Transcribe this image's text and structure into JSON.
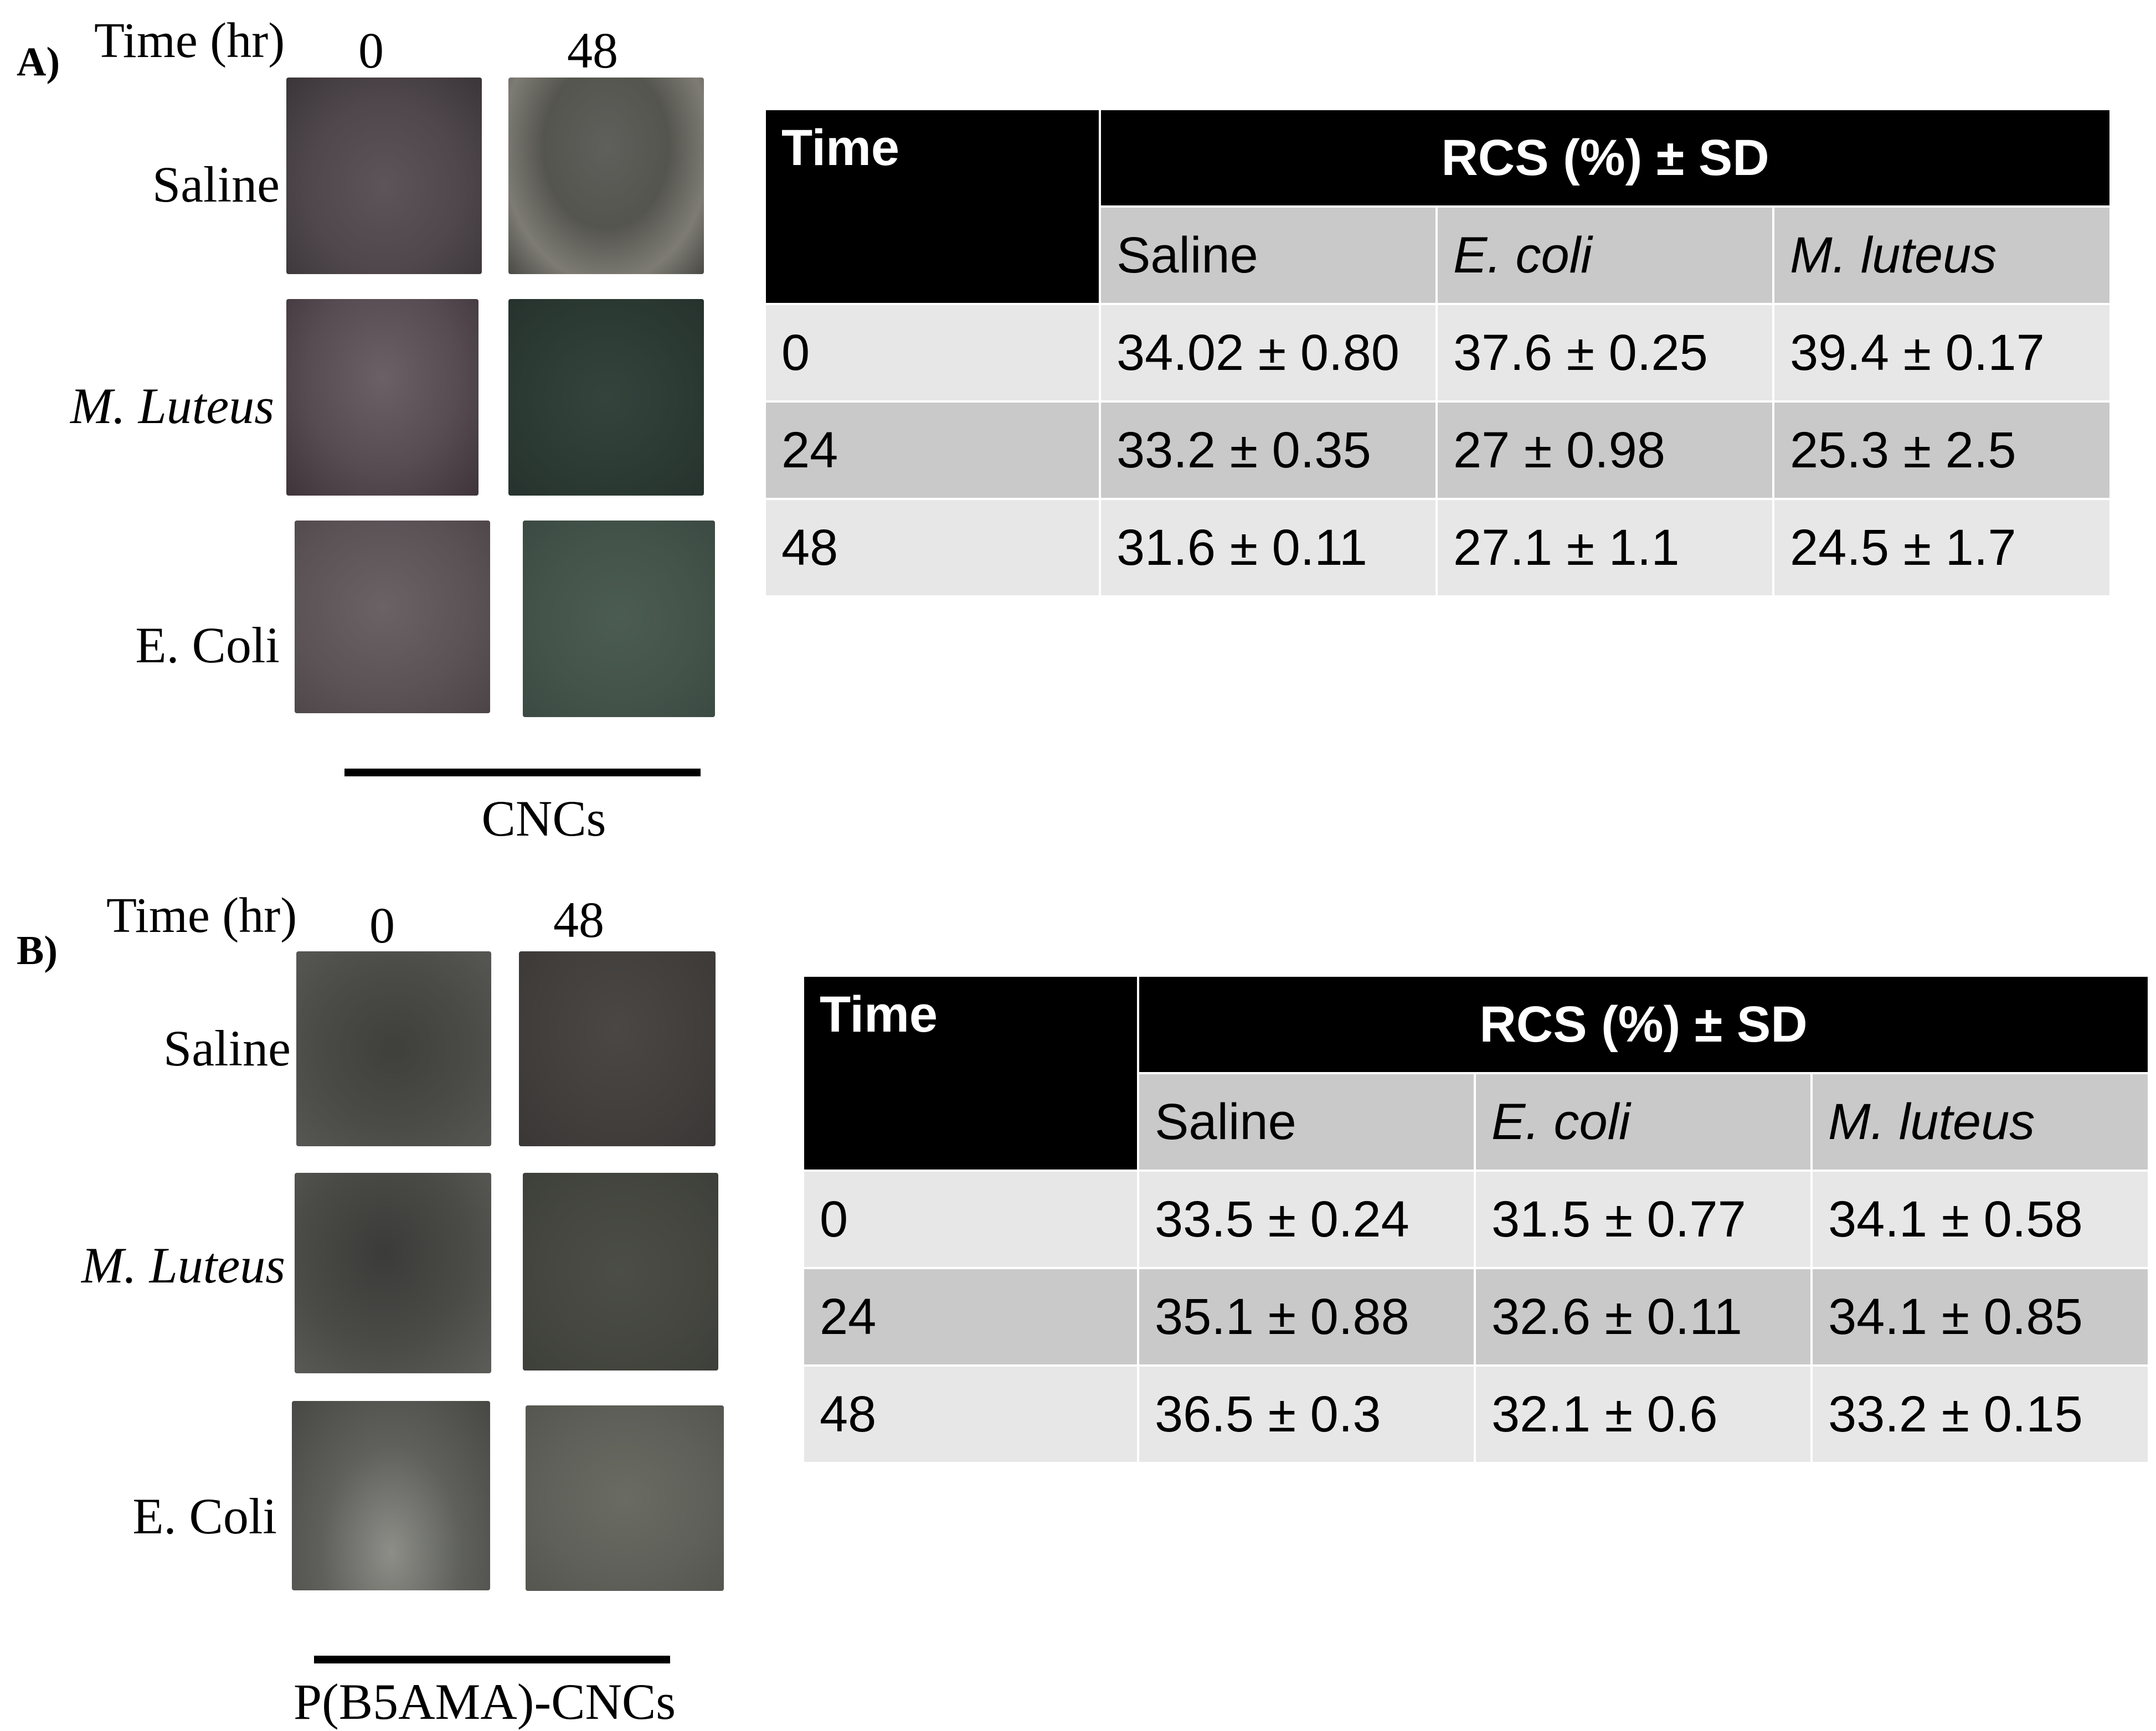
{
  "panel_a": {
    "label": "A)",
    "time_label": "Time (hr)",
    "columns": [
      "0",
      "48"
    ],
    "rows": [
      {
        "label": "Saline",
        "italic": false
      },
      {
        "label": "M. Luteus",
        "italic": true
      },
      {
        "label": "E. Coli",
        "italic": false
      }
    ],
    "caption": "CNCs",
    "table": {
      "time_header": "Time",
      "group_header": "RCS (%) ± SD",
      "sub_headers": [
        "Saline",
        "E. coli",
        "M. luteus"
      ],
      "rows": [
        {
          "time": "0",
          "values": [
            "34.02 ± 0.80",
            "37.6 ± 0.25",
            "39.4 ± 0.17"
          ]
        },
        {
          "time": "24",
          "values": [
            "33.2 ± 0.35",
            "27 ± 0.98",
            "25.3 ± 2.5"
          ]
        },
        {
          "time": "48",
          "values": [
            "31.6 ± 0.11",
            "27.1 ± 1.1",
            "24.5 ± 1.7"
          ]
        }
      ]
    }
  },
  "panel_b": {
    "label": "B)",
    "time_label": "Time (hr)",
    "columns": [
      "0",
      "48"
    ],
    "rows": [
      {
        "label": "Saline",
        "italic": false
      },
      {
        "label": "M. Luteus",
        "italic": true
      },
      {
        "label": "E. Coli",
        "italic": false
      }
    ],
    "caption": "P(B5AMA)-CNCs",
    "table": {
      "time_header": "Time",
      "group_header": "RCS (%) ± SD",
      "sub_headers": [
        "Saline",
        "E. coli",
        "M. luteus"
      ],
      "rows": [
        {
          "time": "0",
          "values": [
            "33.5 ± 0.24",
            "31.5 ± 0.77",
            "34.1 ± 0.58"
          ]
        },
        {
          "time": "24",
          "values": [
            "35.1 ± 0.88",
            "32.6 ± 0.11",
            "34.1 ± 0.85"
          ]
        },
        {
          "time": "48",
          "values": [
            "36.5 ± 0.3",
            "32.1 ± 0.6",
            "33.2 ± 0.15"
          ]
        }
      ]
    }
  }
}
